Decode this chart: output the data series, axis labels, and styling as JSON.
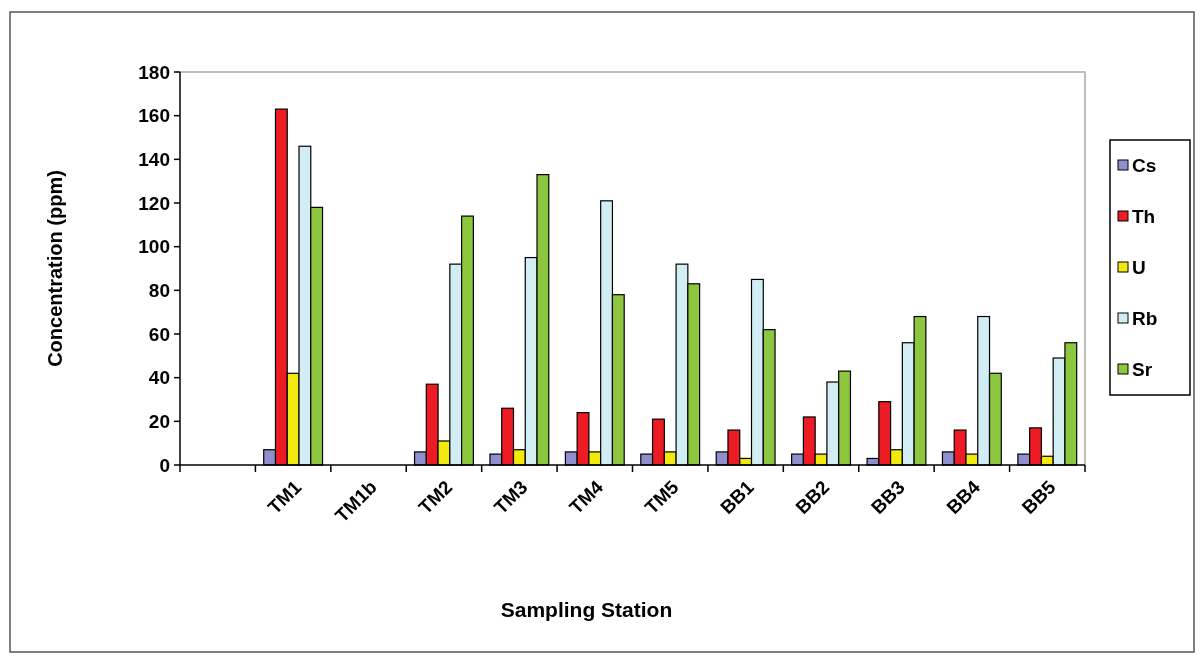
{
  "chart_data": {
    "type": "bar",
    "xlabel": "Sampling Station",
    "ylabel": "Concentration (ppm)",
    "categories": [
      null,
      "TM1",
      "TM1b",
      "TM2",
      "TM3",
      "TM4",
      "TM5",
      "BB1",
      "BB2",
      "BB3",
      "BB4",
      "BB5"
    ],
    "series": [
      {
        "name": "Cs",
        "color": "#8f8fce",
        "values": [
          null,
          7,
          null,
          6,
          5,
          6,
          5,
          6,
          5,
          3,
          6,
          5
        ]
      },
      {
        "name": "Th",
        "color": "#ed1c24",
        "values": [
          null,
          163,
          null,
          37,
          26,
          24,
          21,
          16,
          22,
          29,
          16,
          17
        ]
      },
      {
        "name": "U",
        "color": "#f2ea0c",
        "values": [
          null,
          42,
          null,
          11,
          7,
          6,
          6,
          3,
          5,
          7,
          5,
          4
        ]
      },
      {
        "name": "Rb",
        "color": "#d2eef4",
        "values": [
          null,
          146,
          null,
          92,
          95,
          121,
          92,
          85,
          38,
          56,
          68,
          49
        ]
      },
      {
        "name": "Sr",
        "color": "#8dc63f",
        "values": [
          null,
          118,
          null,
          114,
          133,
          78,
          83,
          62,
          43,
          68,
          42,
          56
        ]
      }
    ],
    "ylim": [
      0,
      180
    ],
    "yticks": [
      0,
      20,
      40,
      60,
      80,
      100,
      120,
      140,
      160,
      180
    ],
    "grid": false,
    "legend": "right"
  }
}
